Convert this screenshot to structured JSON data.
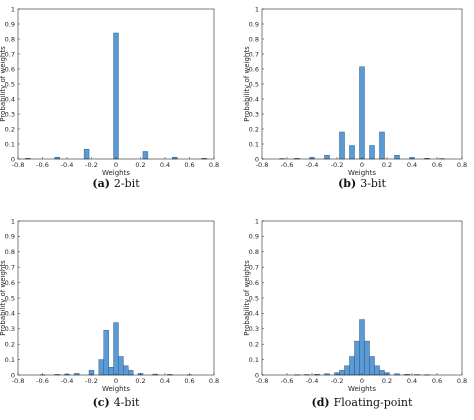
{
  "figure": {
    "bar_color": "#5B9BD5",
    "bar_edge_color": "#2F5F8A",
    "axis_color": "#262626"
  },
  "chart_data": [
    {
      "type": "bar",
      "caption_tag": "(a)",
      "caption_text": "2-bit",
      "xlabel": "Weights",
      "ylabel": "Probability of weights",
      "xlim": [
        -0.8,
        0.8
      ],
      "ylim": [
        0,
        1
      ],
      "xticks": [
        "-0.8",
        "-0.6",
        "-0.4",
        "-0.2",
        "0",
        "0.2",
        "0.4",
        "0.6",
        "0.8"
      ],
      "yticks": [
        "0",
        "0.1",
        "0.2",
        "0.3",
        "0.4",
        "0.5",
        "0.6",
        "0.7",
        "0.8",
        "0.9",
        "1"
      ],
      "grid": false,
      "bin_width": 0.04,
      "bins": [
        {
          "x": -0.72,
          "y": 0.005
        },
        {
          "x": -0.48,
          "y": 0.012
        },
        {
          "x": -0.24,
          "y": 0.065
        },
        {
          "x": 0.0,
          "y": 0.84
        },
        {
          "x": 0.24,
          "y": 0.05
        },
        {
          "x": 0.48,
          "y": 0.012
        },
        {
          "x": 0.72,
          "y": 0.005
        }
      ]
    },
    {
      "type": "bar",
      "caption_tag": "(b)",
      "caption_text": "3-bit",
      "xlabel": "Weights",
      "ylabel": "Probability of weights",
      "xlim": [
        -0.8,
        0.8
      ],
      "ylim": [
        0,
        1
      ],
      "xticks": [
        "-0.8",
        "-0.6",
        "-0.4",
        "-0.2",
        "0",
        "0.2",
        "0.4",
        "0.6",
        "0.8"
      ],
      "yticks": [
        "0",
        "0.1",
        "0.2",
        "0.3",
        "0.4",
        "0.5",
        "0.6",
        "0.7",
        "0.8",
        "0.9",
        "1"
      ],
      "grid": false,
      "bin_width": 0.04,
      "bins": [
        {
          "x": -0.64,
          "y": 0.003
        },
        {
          "x": -0.52,
          "y": 0.005
        },
        {
          "x": -0.4,
          "y": 0.01
        },
        {
          "x": -0.28,
          "y": 0.025
        },
        {
          "x": -0.16,
          "y": 0.18
        },
        {
          "x": -0.08,
          "y": 0.09
        },
        {
          "x": 0.0,
          "y": 0.615
        },
        {
          "x": 0.08,
          "y": 0.09
        },
        {
          "x": 0.16,
          "y": 0.18
        },
        {
          "x": 0.28,
          "y": 0.025
        },
        {
          "x": 0.4,
          "y": 0.01
        },
        {
          "x": 0.52,
          "y": 0.005
        },
        {
          "x": 0.64,
          "y": 0.003
        }
      ]
    },
    {
      "type": "bar",
      "caption_tag": "(c)",
      "caption_text": "4-bit",
      "xlabel": "Weights",
      "ylabel": "Probability of weights",
      "xlim": [
        -0.8,
        0.8
      ],
      "ylim": [
        0,
        1
      ],
      "xticks": [
        "-0.8",
        "-0.6",
        "-0.4",
        "-0.2",
        "0",
        "0.2",
        "0.4",
        "0.6",
        "0.8"
      ],
      "yticks": [
        "0",
        "0.1",
        "0.2",
        "0.3",
        "0.4",
        "0.5",
        "0.6",
        "0.7",
        "0.8",
        "0.9",
        "1"
      ],
      "grid": false,
      "bin_width": 0.04,
      "bins": [
        {
          "x": -0.6,
          "y": 0.002
        },
        {
          "x": -0.48,
          "y": 0.004
        },
        {
          "x": -0.4,
          "y": 0.006
        },
        {
          "x": -0.32,
          "y": 0.01
        },
        {
          "x": -0.2,
          "y": 0.03
        },
        {
          "x": -0.12,
          "y": 0.1
        },
        {
          "x": -0.08,
          "y": 0.29
        },
        {
          "x": -0.04,
          "y": 0.05
        },
        {
          "x": 0.0,
          "y": 0.34
        },
        {
          "x": 0.04,
          "y": 0.12
        },
        {
          "x": 0.08,
          "y": 0.06
        },
        {
          "x": 0.12,
          "y": 0.03
        },
        {
          "x": 0.2,
          "y": 0.01
        },
        {
          "x": 0.32,
          "y": 0.006
        },
        {
          "x": 0.44,
          "y": 0.004
        },
        {
          "x": 0.6,
          "y": 0.002
        }
      ]
    },
    {
      "type": "bar",
      "caption_tag": "(d)",
      "caption_text": "Floating-point",
      "xlabel": "Weights",
      "ylabel": "Probability of weights",
      "xlim": [
        -0.8,
        0.8
      ],
      "ylim": [
        0,
        1
      ],
      "xticks": [
        "-0.8",
        "-0.6",
        "-0.4",
        "-0.2",
        "0",
        "0.2",
        "0.4",
        "0.6",
        "0.8"
      ],
      "yticks": [
        "0",
        "0.1",
        "0.2",
        "0.3",
        "0.4",
        "0.5",
        "0.6",
        "0.7",
        "0.8",
        "0.9",
        "1"
      ],
      "grid": false,
      "bin_width": 0.04,
      "bins": [
        {
          "x": -0.52,
          "y": 0.002
        },
        {
          "x": -0.44,
          "y": 0.003
        },
        {
          "x": -0.36,
          "y": 0.005
        },
        {
          "x": -0.28,
          "y": 0.008
        },
        {
          "x": -0.2,
          "y": 0.015
        },
        {
          "x": -0.16,
          "y": 0.03
        },
        {
          "x": -0.12,
          "y": 0.06
        },
        {
          "x": -0.08,
          "y": 0.12
        },
        {
          "x": -0.04,
          "y": 0.22
        },
        {
          "x": 0.0,
          "y": 0.36
        },
        {
          "x": 0.04,
          "y": 0.22
        },
        {
          "x": 0.08,
          "y": 0.12
        },
        {
          "x": 0.12,
          "y": 0.06
        },
        {
          "x": 0.16,
          "y": 0.03
        },
        {
          "x": 0.2,
          "y": 0.015
        },
        {
          "x": 0.28,
          "y": 0.008
        },
        {
          "x": 0.36,
          "y": 0.005
        },
        {
          "x": 0.44,
          "y": 0.003
        },
        {
          "x": 0.52,
          "y": 0.002
        }
      ]
    }
  ]
}
